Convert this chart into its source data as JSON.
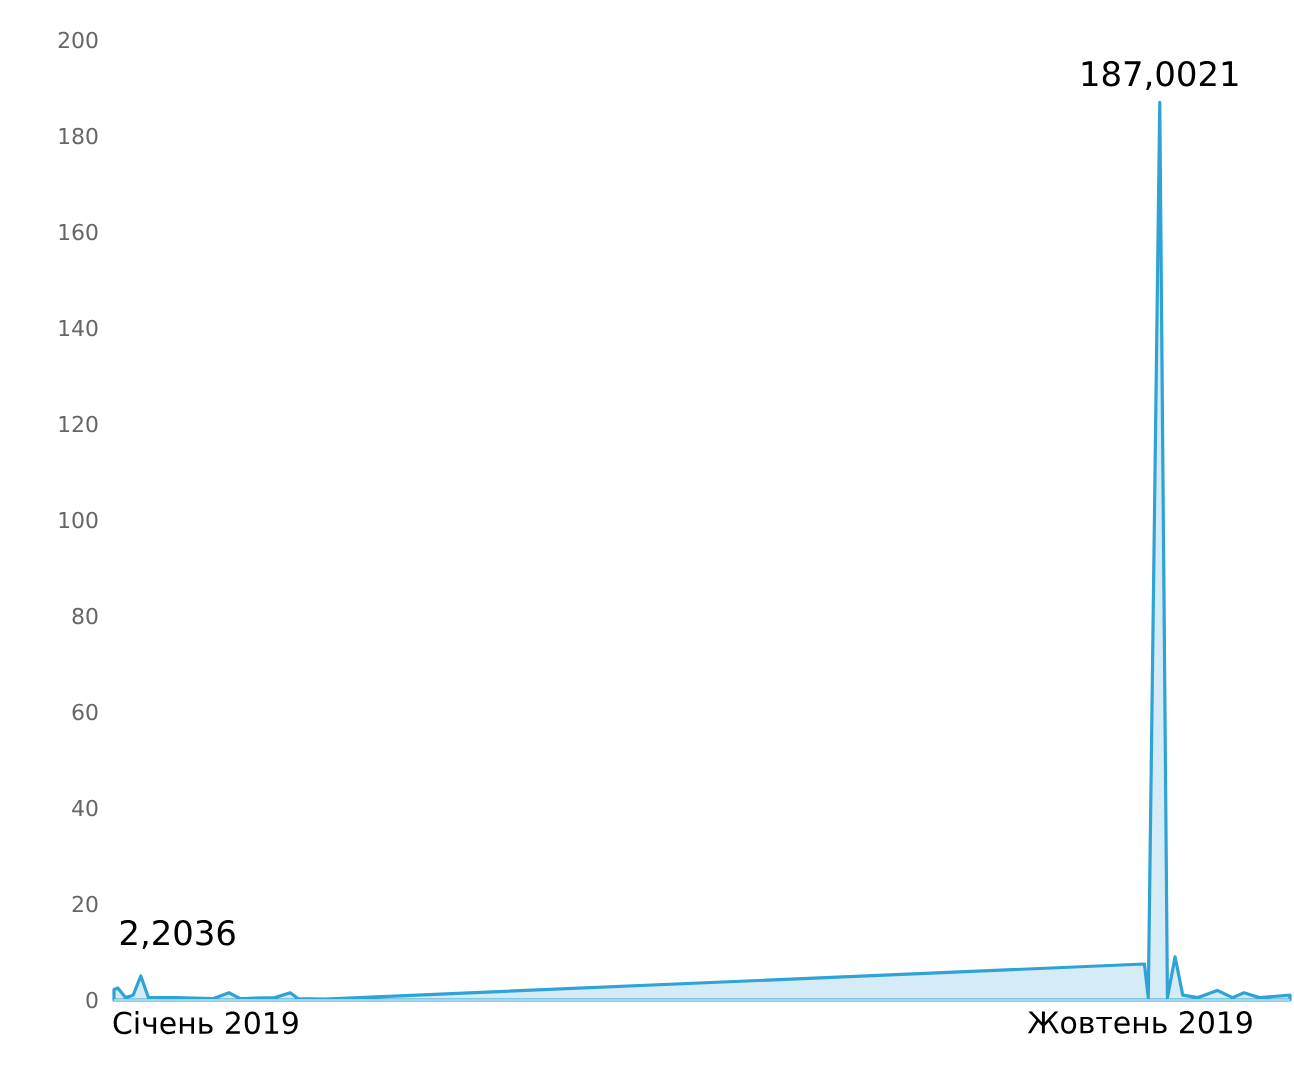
{
  "chart_data": {
    "type": "area",
    "x": [
      "2019-01-01",
      "2019-01-02",
      "2019-01-04",
      "2019-01-06",
      "2019-01-08",
      "2019-01-10",
      "2019-01-17",
      "2019-01-27",
      "2019-01-31",
      "2019-02-03",
      "2019-02-12",
      "2019-02-16",
      "2019-02-18",
      "2019-02-25",
      "2019-09-27",
      "2019-09-28",
      "2019-10-01",
      "2019-10-03",
      "2019-10-05",
      "2019-10-07",
      "2019-10-11",
      "2019-10-16",
      "2019-10-20",
      "2019-10-23",
      "2019-10-27",
      "2019-11-04"
    ],
    "series": [
      {
        "color": "#2fa3d6",
        "values": [
          2.2036,
          2.5,
          0.5,
          1,
          5,
          0.5,
          0.5,
          0.3,
          1.5,
          0.3,
          0.5,
          1.5,
          0.3,
          0.2,
          7.5,
          0.5,
          187.0021,
          0.5,
          9,
          1,
          0.5,
          2,
          0.5,
          1.5,
          0.5,
          1
        ]
      }
    ],
    "xticks": [
      {
        "value": "2019-01-25",
        "label": "Січень 2019"
      },
      {
        "value": "2019-09-26",
        "label": "Жовтень 2019"
      }
    ],
    "xlim": [
      "2019-01-01",
      "2019-11-04"
    ],
    "ylim": [
      0,
      200
    ],
    "yticks": [
      0,
      20,
      40,
      60,
      80,
      100,
      120,
      140,
      160,
      180,
      200
    ],
    "annotations": [
      {
        "text": "2,2036",
        "x": "2019-01-01",
        "y": 2.2036
      },
      {
        "text": "187,0021",
        "x": "2019-10-01",
        "y": 187.0021
      }
    ]
  }
}
